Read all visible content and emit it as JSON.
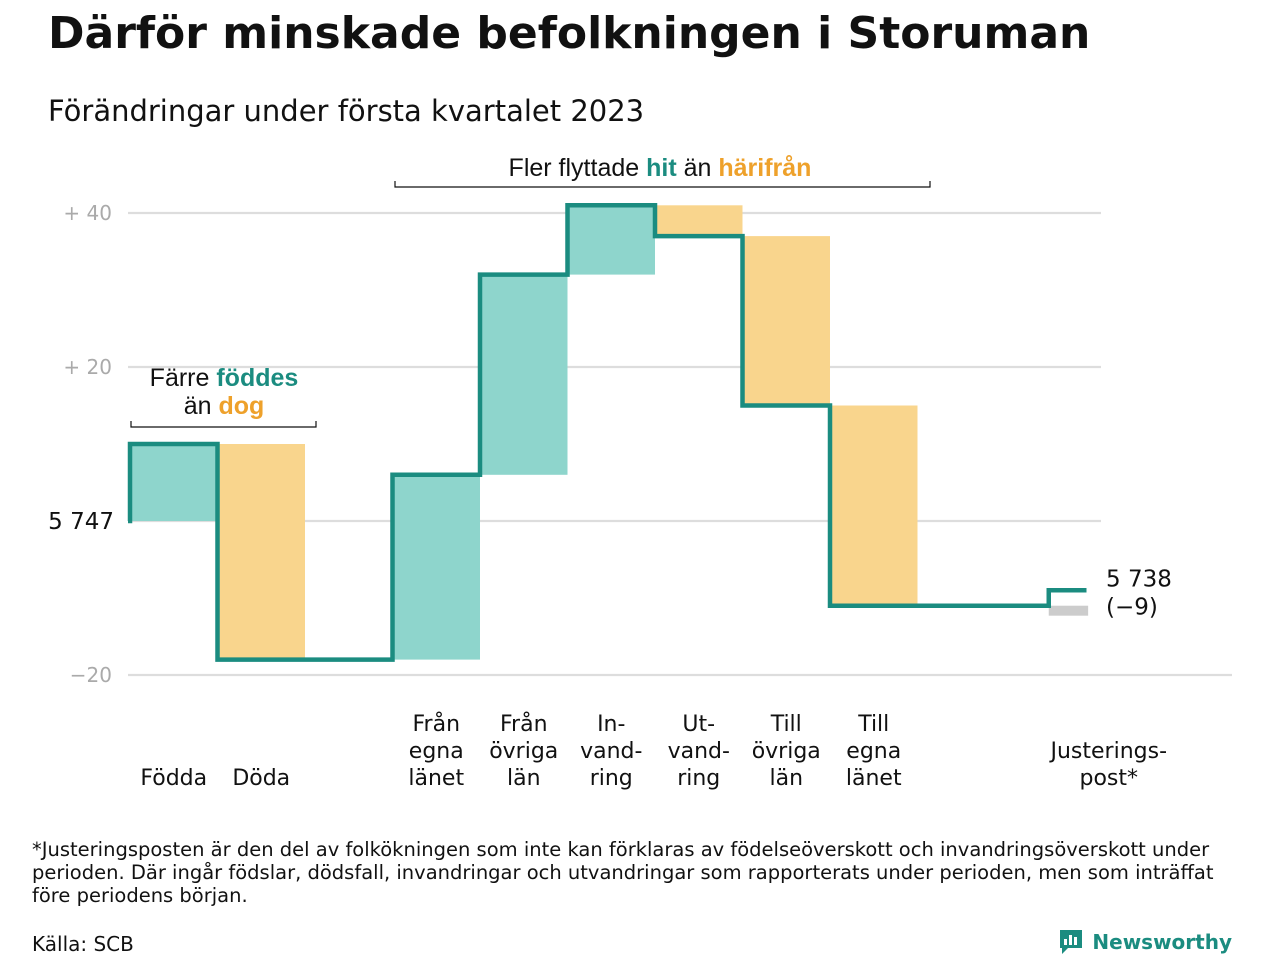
{
  "header": {
    "title": "Därför minskade befolkningen i Storuman",
    "subtitle": "Förändringar under första kvartalet 2023"
  },
  "annotations": {
    "births_deaths": {
      "line1_prefix": "Färre ",
      "line1_highlight": "föddes",
      "line2_prefix": "än ",
      "line2_highlight": "dog"
    },
    "migration": {
      "prefix": "Fler flyttade ",
      "highlight_in": "hit",
      "middle": " än ",
      "highlight_out": "härifrån"
    }
  },
  "colors": {
    "increase": "#8ed5cc",
    "decrease": "#f9d58d",
    "adjustment": "#cccccc",
    "step_line": "#1b8c80",
    "accent_in": "#1b8c80",
    "accent_out": "#eea12b",
    "grid": "#dddddd",
    "tick_text": "#aaaaaa"
  },
  "chart_data": {
    "type": "waterfall",
    "start_value": 5747,
    "start_label": "5 747",
    "end_label_value": "5 738",
    "end_label_change": "(−9)",
    "yticks": [
      {
        "value": 40,
        "label": "+ 40"
      },
      {
        "value": 20,
        "label": "+ 20"
      },
      {
        "value": -20,
        "label": "−20"
      }
    ],
    "ylim": [
      -20,
      40
    ],
    "steps": [
      {
        "label_lines": [
          "Födda"
        ],
        "change": 10,
        "kind": "increase"
      },
      {
        "label_lines": [
          "Döda"
        ],
        "change": -28,
        "kind": "decrease"
      },
      {
        "label_lines": [],
        "change": 0,
        "kind": "gap"
      },
      {
        "label_lines": [
          "Från",
          "egna",
          "länet"
        ],
        "change": 24,
        "kind": "increase"
      },
      {
        "label_lines": [
          "Från",
          "övriga",
          "län"
        ],
        "change": 26,
        "kind": "increase"
      },
      {
        "label_lines": [
          "In-",
          "vand-",
          "ring"
        ],
        "change": 9,
        "kind": "increase"
      },
      {
        "label_lines": [
          "Ut-",
          "vand-",
          "ring"
        ],
        "change": -4,
        "kind": "decrease"
      },
      {
        "label_lines": [
          "Till",
          "övriga",
          "län"
        ],
        "change": -22,
        "kind": "decrease"
      },
      {
        "label_lines": [
          "Till",
          "egna",
          "länet"
        ],
        "change": -26,
        "kind": "decrease"
      },
      {
        "label_lines": [],
        "change": 0,
        "kind": "gap"
      },
      {
        "label_lines": [
          "Justerings-",
          "post*"
        ],
        "change": 2,
        "kind": "adjustment"
      }
    ]
  },
  "footer": {
    "footnote": "*Justeringsposten är den del av folkökningen som inte kan förklaras av födelseöverskott och invandringsöverskott under perioden. Där ingår födslar, dödsfall, invandringar och utvandringar som rapporterats under perioden, men som inträffat före periodens början.",
    "source": "Källa: SCB",
    "brand": "Newsworthy",
    "brand_icon": "bar-chart-logo-icon"
  }
}
